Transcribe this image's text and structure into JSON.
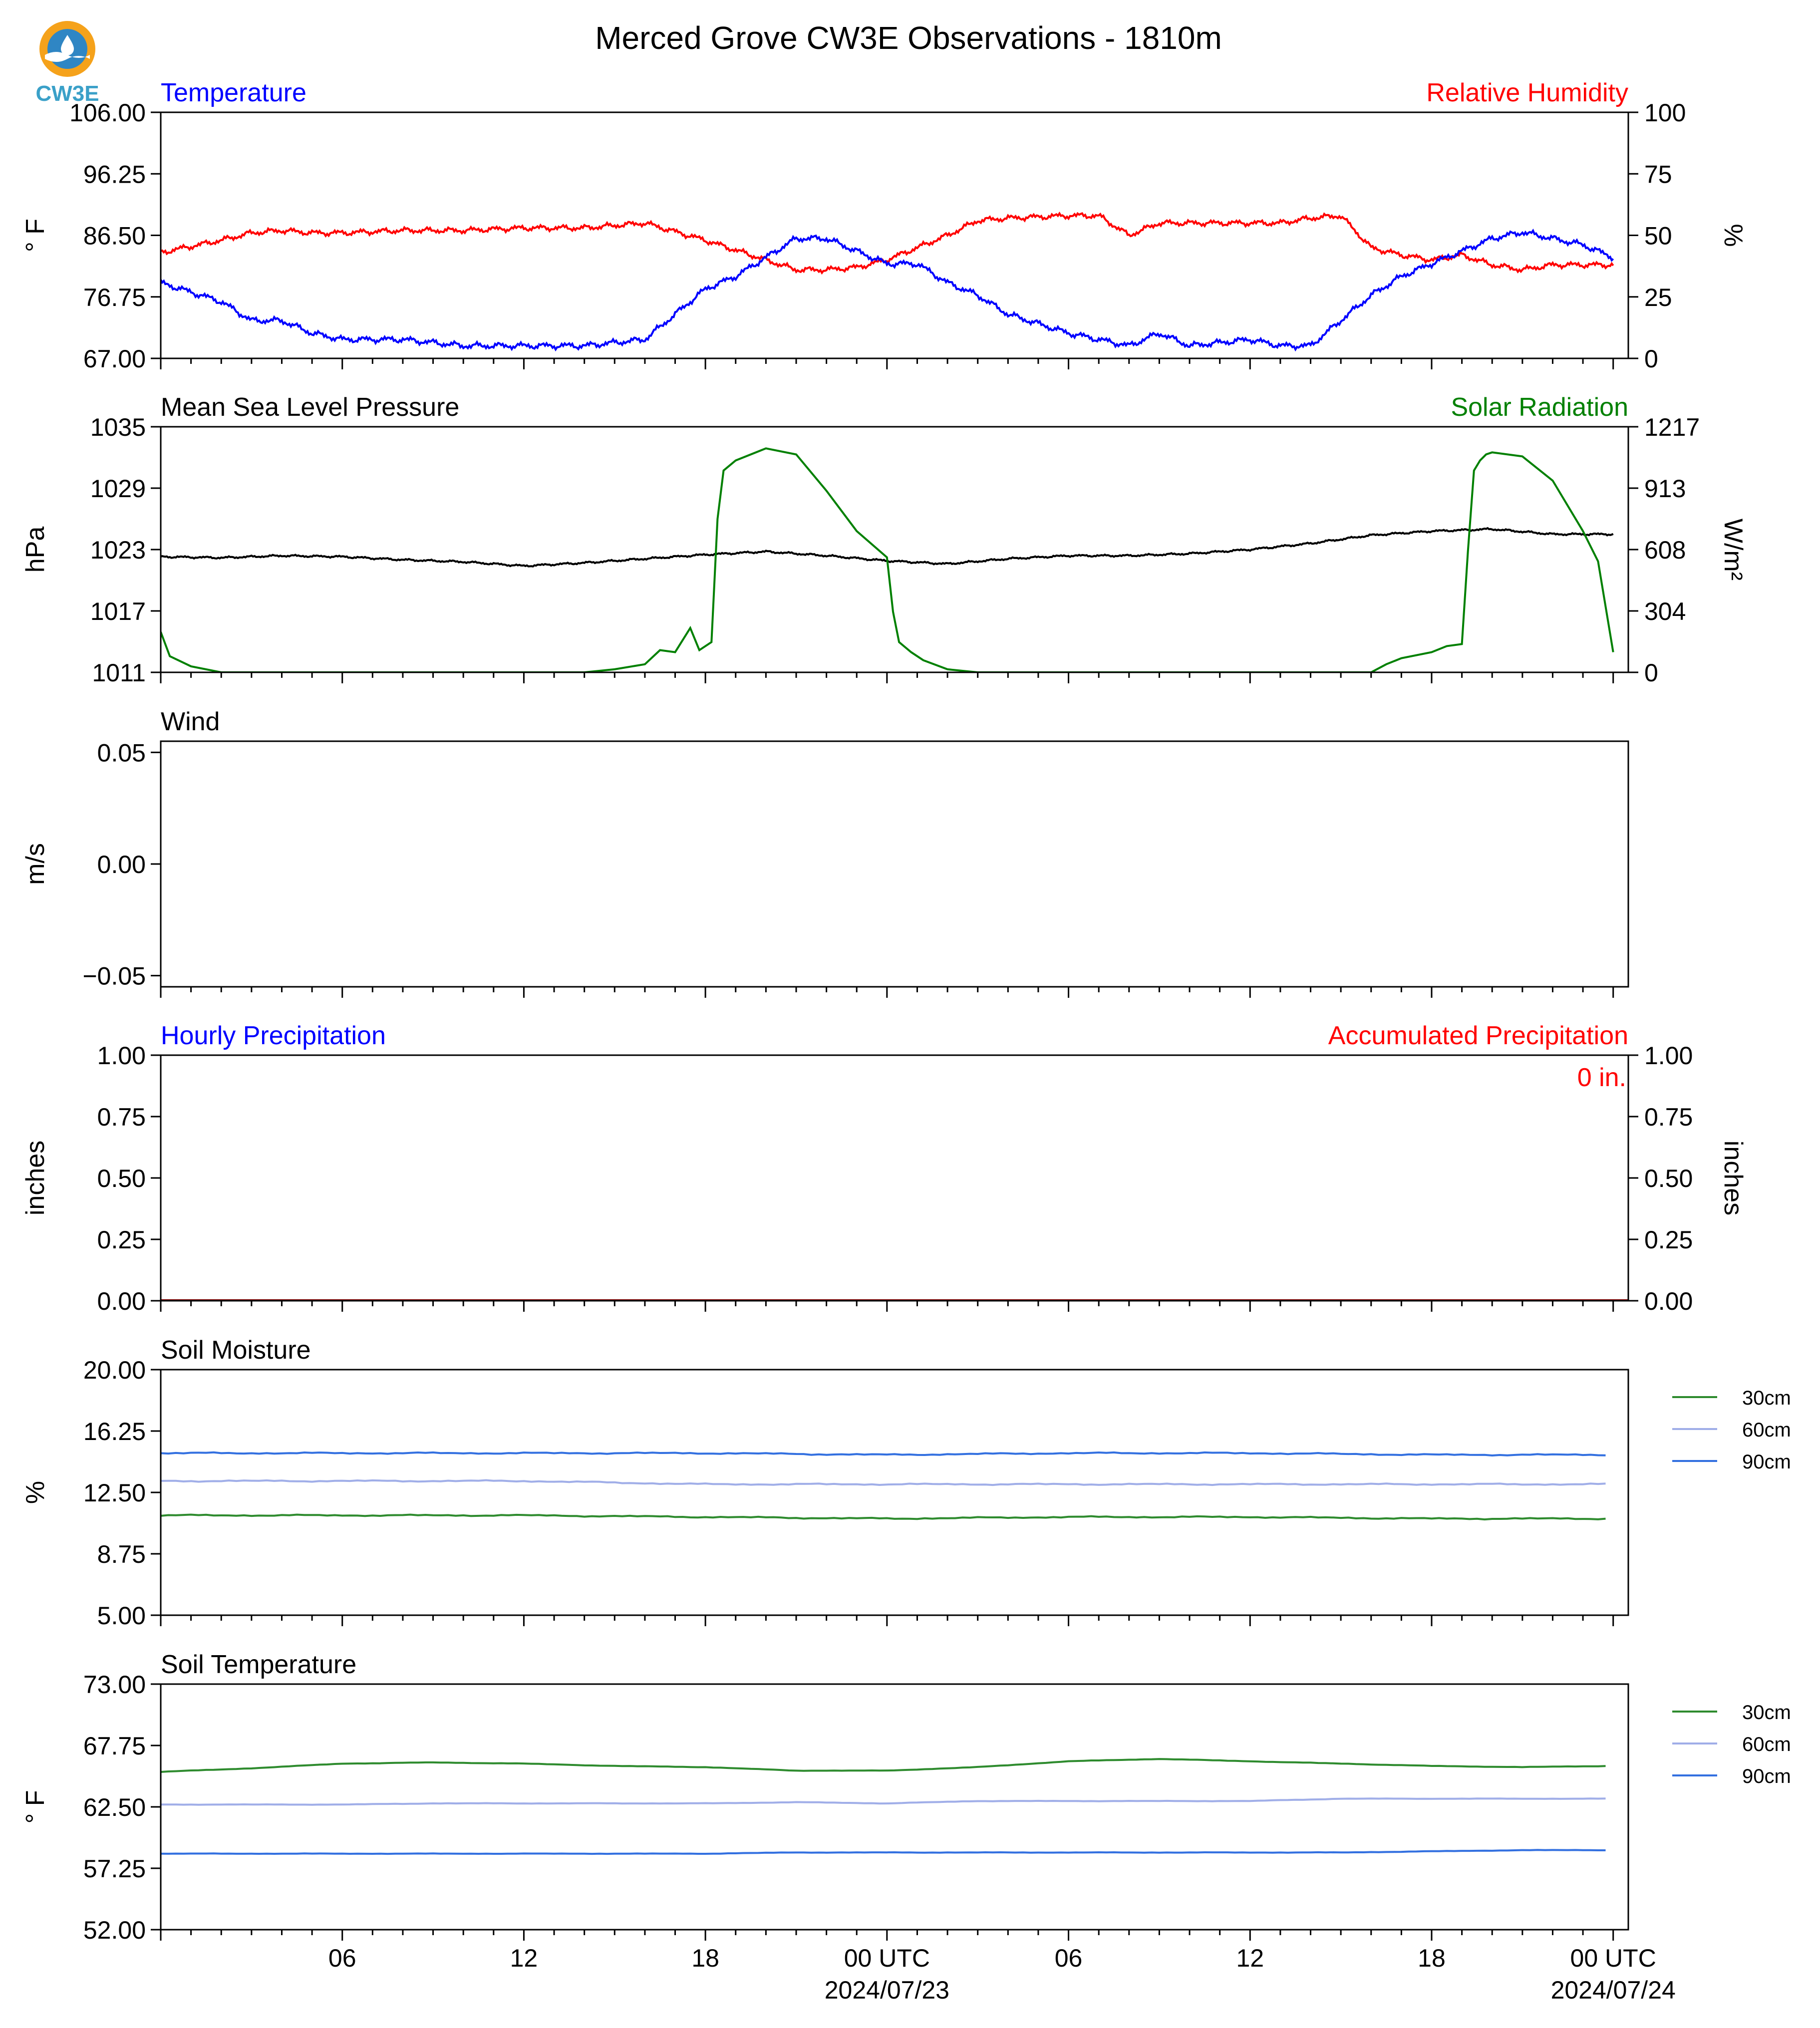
{
  "logo": {
    "text": "CW3E",
    "colors": {
      "orange": "#f5a21b",
      "blue": "#2f86c4",
      "teal": "#3aa0c8"
    }
  },
  "figure": {
    "title": "Merced Grove CW3E Observations - 1810m"
  },
  "time_axis": {
    "ticks": [
      "06",
      "12",
      "18",
      "00 UTC",
      "06",
      "12",
      "18",
      "00 UTC"
    ],
    "date_labels": [
      "2024/07/23",
      "2024/07/24"
    ]
  },
  "colors": {
    "temperature": "#0000ff",
    "humidity": "#ff0000",
    "pressure": "#000000",
    "solar": "#008000",
    "soil30": "#2e8b2e",
    "soil60": "#a0aee8",
    "soil90": "#3370e0"
  },
  "chart_data": [
    {
      "type": "line",
      "left_title": "Temperature",
      "right_title": "Relative Humidity",
      "ylabel": "° F",
      "ylabel_right": "%",
      "ylim": [
        67,
        106
      ],
      "ylim_right": [
        0,
        100
      ],
      "yticks": [
        "106.00",
        "96.25",
        "86.50",
        "76.75",
        "67.00"
      ],
      "yticks_right": [
        "100",
        "75",
        "50",
        "25",
        "0"
      ],
      "x_hours": [
        0,
        2,
        3,
        4,
        5,
        6,
        8,
        10,
        12,
        14,
        16,
        18,
        19,
        20,
        21,
        22,
        23,
        24,
        25,
        26,
        27,
        28,
        30,
        31,
        32,
        33,
        34,
        36,
        37,
        38,
        39,
        40,
        41,
        42,
        43,
        44,
        45,
        46,
        47,
        48
      ],
      "series": [
        {
          "name": "Temperature",
          "axis": "left",
          "values": [
            79,
            76,
            73,
            73,
            71,
            70,
            70,
            69,
            69,
            69,
            70,
            78,
            80,
            83,
            86,
            86,
            84,
            82,
            82,
            79,
            77,
            74,
            71,
            70,
            69,
            71,
            69,
            70,
            69,
            69,
            73,
            77,
            80,
            82,
            84,
            86,
            87,
            86,
            85,
            83
          ]
        },
        {
          "name": "Relative Humidity",
          "axis": "right",
          "values": [
            43,
            48,
            51,
            52,
            51,
            51,
            52,
            52,
            53,
            53,
            55,
            48,
            44,
            40,
            36,
            36,
            37,
            40,
            45,
            50,
            56,
            57,
            58,
            58,
            50,
            55,
            55,
            55,
            55,
            57,
            58,
            45,
            42,
            40,
            42,
            38,
            36,
            38,
            38,
            38
          ]
        }
      ]
    },
    {
      "type": "line",
      "left_title": "Mean Sea Level Pressure",
      "right_title": "Solar Radiation",
      "ylabel": "hPa",
      "ylabel_right": "W/m²",
      "ylim": [
        1011,
        1035
      ],
      "ylim_right": [
        0,
        1217
      ],
      "yticks": [
        "1035",
        "1029",
        "1023",
        "1017",
        "1011"
      ],
      "yticks_right": [
        "1217",
        "913",
        "608",
        "304",
        "0"
      ],
      "series": [
        {
          "name": "Mean Sea Level Pressure",
          "axis": "left",
          "x_hours": [
            0,
            2,
            4,
            6,
            8,
            10,
            12,
            14,
            16,
            18,
            20,
            22,
            24,
            26,
            28,
            30,
            32,
            34,
            36,
            38,
            40,
            42,
            44,
            46,
            48
          ],
          "values": [
            1022.3,
            1022.2,
            1022.4,
            1022.3,
            1022.0,
            1021.8,
            1021.4,
            1021.7,
            1022.1,
            1022.5,
            1022.8,
            1022.4,
            1021.9,
            1021.6,
            1022.1,
            1022.4,
            1022.4,
            1022.6,
            1023.0,
            1023.6,
            1024.4,
            1024.8,
            1025.0,
            1024.5,
            1024.5
          ]
        },
        {
          "name": "Solar Radiation",
          "axis": "right",
          "x_hours": [
            0,
            0.3,
            1,
            2,
            14,
            15,
            16,
            16.5,
            17,
            17.5,
            17.8,
            18.2,
            18.4,
            18.6,
            19,
            20,
            21,
            22,
            23,
            24,
            24.2,
            24.4,
            24.8,
            25.2,
            26,
            27,
            40,
            40.5,
            41,
            42,
            42.5,
            43,
            43.2,
            43.4,
            43.6,
            43.8,
            44,
            45,
            46,
            47,
            47.5,
            48
          ],
          "values": [
            200,
            80,
            30,
            0,
            0,
            15,
            40,
            110,
            100,
            220,
            110,
            150,
            760,
            1000,
            1050,
            1110,
            1080,
            900,
            700,
            570,
            300,
            150,
            100,
            60,
            15,
            0,
            0,
            40,
            70,
            100,
            130,
            140,
            600,
            1000,
            1050,
            1080,
            1090,
            1070,
            950,
            700,
            550,
            100
          ]
        }
      ]
    },
    {
      "type": "line",
      "left_title": "Wind",
      "ylabel": "m/s",
      "ylim": [
        -0.055,
        0.055
      ],
      "yticks": [
        "0.05",
        "0.00",
        "−0.05"
      ],
      "series": []
    },
    {
      "type": "bar",
      "left_title": "Hourly Precipitation",
      "right_title": "Accumulated Precipitation",
      "ylabel": "inches",
      "ylabel_right": "inches",
      "ylim": [
        0,
        1
      ],
      "ylim_right": [
        0,
        1
      ],
      "yticks": [
        "1.00",
        "0.75",
        "0.50",
        "0.25",
        "0.00"
      ],
      "yticks_right": [
        "1.00",
        "0.75",
        "0.50",
        "0.25",
        "0.00"
      ],
      "annotation": "0 in.",
      "series": [
        {
          "name": "Accumulated Precipitation",
          "axis": "right",
          "values": [
            0,
            0
          ]
        }
      ]
    },
    {
      "type": "line",
      "left_title": "Soil Moisture",
      "ylabel": "%",
      "ylim": [
        5,
        20
      ],
      "yticks": [
        "20.00",
        "16.25",
        "12.50",
        "8.75",
        "5.00"
      ],
      "legend": "right",
      "x_hours": [
        0,
        6,
        12,
        18,
        24,
        30,
        36,
        42,
        47.8
      ],
      "series": [
        {
          "name": "30cm",
          "values": [
            11.1,
            11.1,
            11.1,
            11.0,
            10.9,
            11.0,
            11.0,
            10.9,
            10.9
          ]
        },
        {
          "name": "60cm",
          "values": [
            13.2,
            13.2,
            13.2,
            13.0,
            13.0,
            13.0,
            13.0,
            13.0,
            13.0
          ]
        },
        {
          "name": "90cm",
          "values": [
            14.9,
            14.9,
            14.9,
            14.9,
            14.8,
            14.9,
            14.9,
            14.8,
            14.8
          ]
        }
      ]
    },
    {
      "type": "line",
      "left_title": "Soil Temperature",
      "ylabel": "° F",
      "ylim": [
        52,
        73
      ],
      "yticks": [
        "73.00",
        "67.75",
        "62.50",
        "57.25",
        "52.00"
      ],
      "legend": "right",
      "x_hours": [
        0,
        3,
        6,
        9,
        12,
        15,
        18,
        21,
        24,
        27,
        30,
        33,
        36,
        39,
        42,
        45,
        47.8
      ],
      "series": [
        {
          "name": "30cm",
          "values": [
            65.5,
            65.8,
            66.2,
            66.3,
            66.2,
            66.0,
            65.9,
            65.6,
            65.6,
            65.9,
            66.4,
            66.6,
            66.4,
            66.2,
            66.0,
            65.9,
            66.0
          ]
        },
        {
          "name": "60cm",
          "values": [
            62.7,
            62.7,
            62.7,
            62.8,
            62.8,
            62.8,
            62.8,
            62.9,
            62.8,
            63.0,
            63.0,
            63.0,
            63.0,
            63.2,
            63.2,
            63.2,
            63.2
          ]
        },
        {
          "name": "90cm",
          "values": [
            58.5,
            58.5,
            58.5,
            58.5,
            58.5,
            58.5,
            58.5,
            58.6,
            58.6,
            58.6,
            58.6,
            58.6,
            58.6,
            58.6,
            58.7,
            58.8,
            58.8
          ]
        }
      ]
    }
  ]
}
